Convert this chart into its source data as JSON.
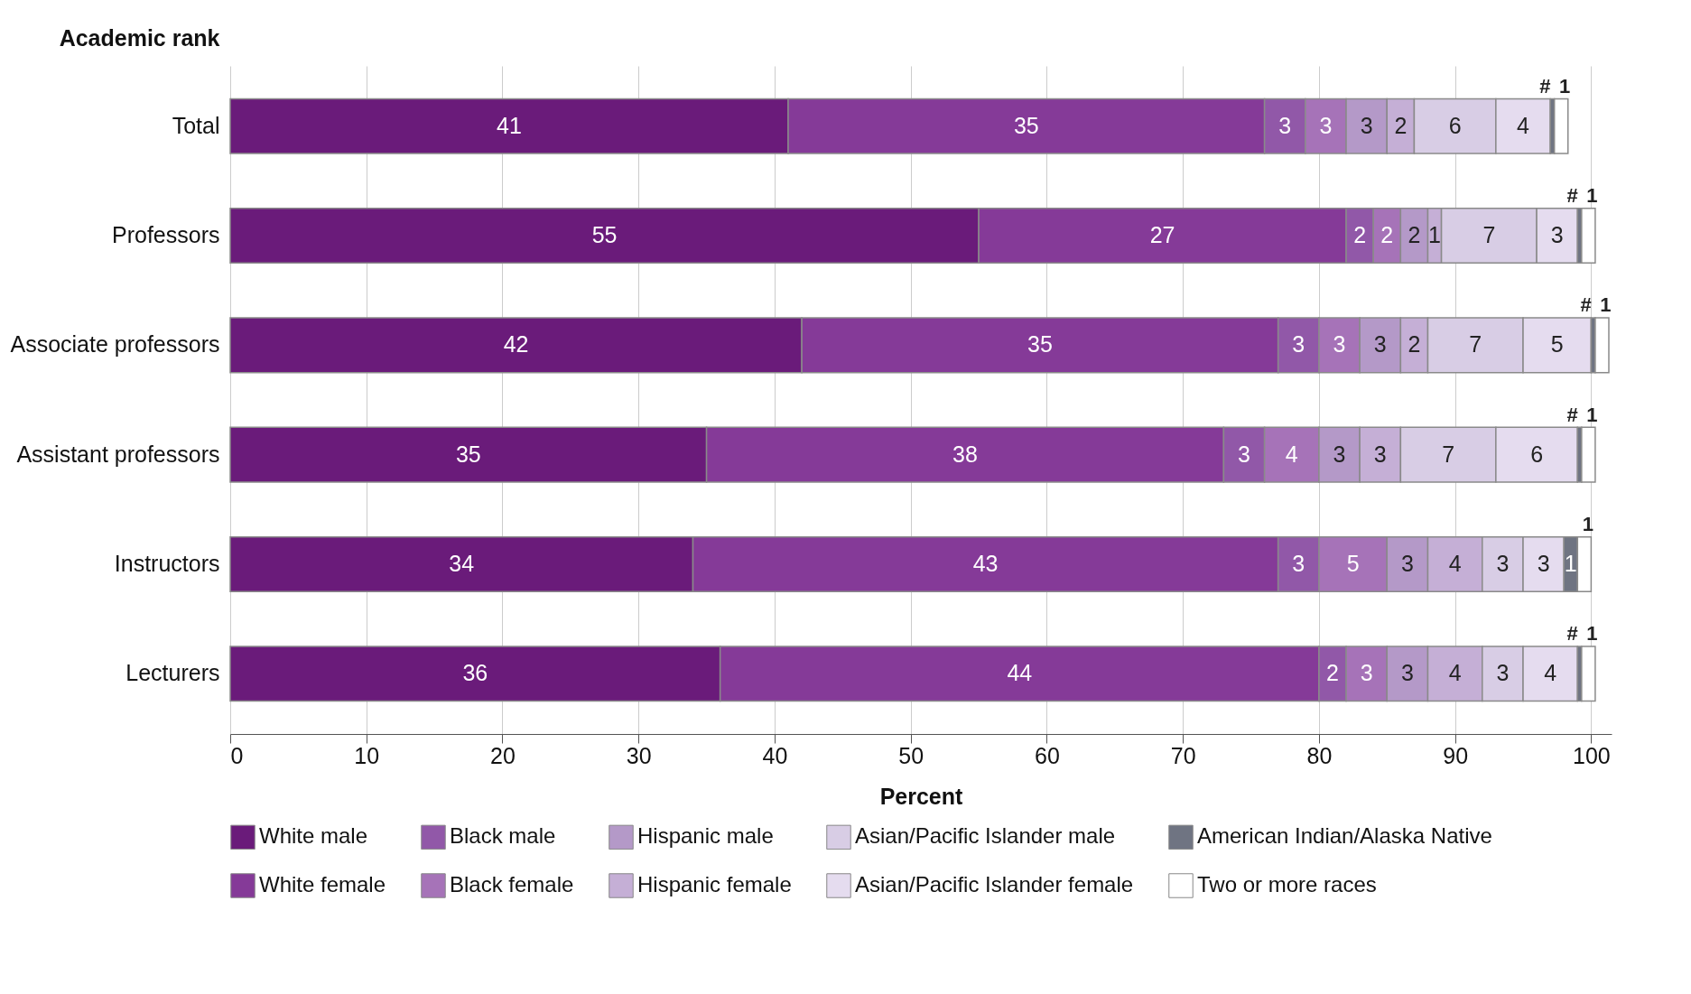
{
  "chart_data": {
    "type": "bar",
    "orientation": "horizontal",
    "stacked": true,
    "xlabel": "Percent",
    "ylabel": "Academic rank",
    "categories": [
      "Total",
      "Professors",
      "Associate professors",
      "Assistant professors",
      "Instructors",
      "Lecturers"
    ],
    "xlim": [
      0,
      101.5
    ],
    "xticks": [
      0,
      10,
      20,
      30,
      40,
      50,
      60,
      70,
      80,
      90,
      100
    ],
    "grid": "x",
    "legend": "bottom",
    "data_labels": true,
    "series": [
      {
        "name": "White male",
        "color": "#6a1b7a",
        "values": [
          41,
          55,
          42,
          35,
          34,
          36
        ]
      },
      {
        "name": "White female",
        "color": "#853a98",
        "values": [
          35,
          27,
          35,
          38,
          43,
          44
        ]
      },
      {
        "name": "Black male",
        "color": "#9158a8",
        "values": [
          3,
          2,
          3,
          3,
          3,
          2
        ]
      },
      {
        "name": "Black female",
        "color": "#a673b8",
        "values": [
          3,
          2,
          3,
          4,
          5,
          3
        ]
      },
      {
        "name": "Hispanic male",
        "color": "#b499c8",
        "values": [
          3,
          2,
          3,
          3,
          3,
          3
        ]
      },
      {
        "name": "Hispanic female",
        "color": "#c5afd6",
        "values": [
          2,
          1,
          2,
          3,
          4,
          4
        ]
      },
      {
        "name": "Asian/Pacific Islander male",
        "color": "#d8cde5",
        "values": [
          6,
          7,
          7,
          7,
          3,
          3
        ]
      },
      {
        "name": "Asian/Pacific Islander female",
        "color": "#e5dcef",
        "values": [
          4,
          3,
          5,
          6,
          3,
          4
        ]
      },
      {
        "name": "American Indian/Alaska Native",
        "color": "#6f7482",
        "values": [
          0.3,
          0.3,
          0.3,
          0.3,
          1,
          0.3
        ],
        "value_labels": [
          "#",
          "#",
          "#",
          "#",
          "1",
          "#"
        ]
      },
      {
        "name": "Two or more races",
        "color": "#ffffff",
        "values": [
          1,
          1,
          1,
          1,
          1,
          1
        ]
      }
    ]
  }
}
